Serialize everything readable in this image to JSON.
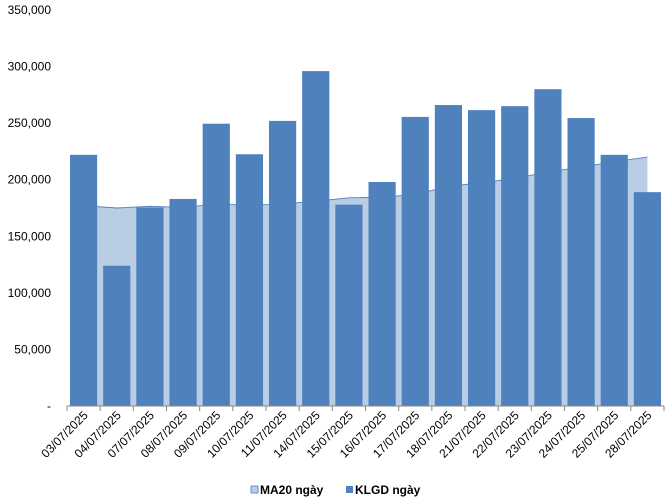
{
  "chart_data": {
    "type": "bar",
    "title": "",
    "xlabel": "",
    "ylabel": "",
    "ylim": [
      0,
      350000
    ],
    "yticks": [
      0,
      50000,
      100000,
      150000,
      200000,
      250000,
      300000,
      350000
    ],
    "ytick_labels": [
      "-",
      "50,000",
      "100,000",
      "150,000",
      "200,000",
      "250,000",
      "300,000",
      "350,000"
    ],
    "grid": false,
    "legend_position": "bottom",
    "categories": [
      "03/07/2025",
      "04/07/2025",
      "07/07/2025",
      "08/07/2025",
      "09/07/2025",
      "10/07/2025",
      "11/07/2025",
      "14/07/2025",
      "15/07/2025",
      "16/07/2025",
      "17/07/2025",
      "18/07/2025",
      "21/07/2025",
      "22/07/2025",
      "23/07/2025",
      "24/07/2025",
      "25/07/2025",
      "28/07/2025"
    ],
    "series": [
      {
        "name": "MA20 ngày",
        "type": "area",
        "color": "#b9cde5",
        "line_color": "#4f81bd",
        "values": [
          177000,
          175000,
          176500,
          175500,
          178500,
          177500,
          178500,
          181000,
          184000,
          184500,
          187000,
          194000,
          197500,
          201000,
          207000,
          211000,
          216000,
          220000
        ]
      },
      {
        "name": "KLGD ngày",
        "type": "bar",
        "color": "#4f81bd",
        "values": [
          222000,
          124000,
          175500,
          183000,
          249500,
          222500,
          252000,
          296000,
          178000,
          198000,
          255500,
          266000,
          261500,
          265000,
          280000,
          254500,
          222000,
          189000
        ]
      }
    ]
  }
}
